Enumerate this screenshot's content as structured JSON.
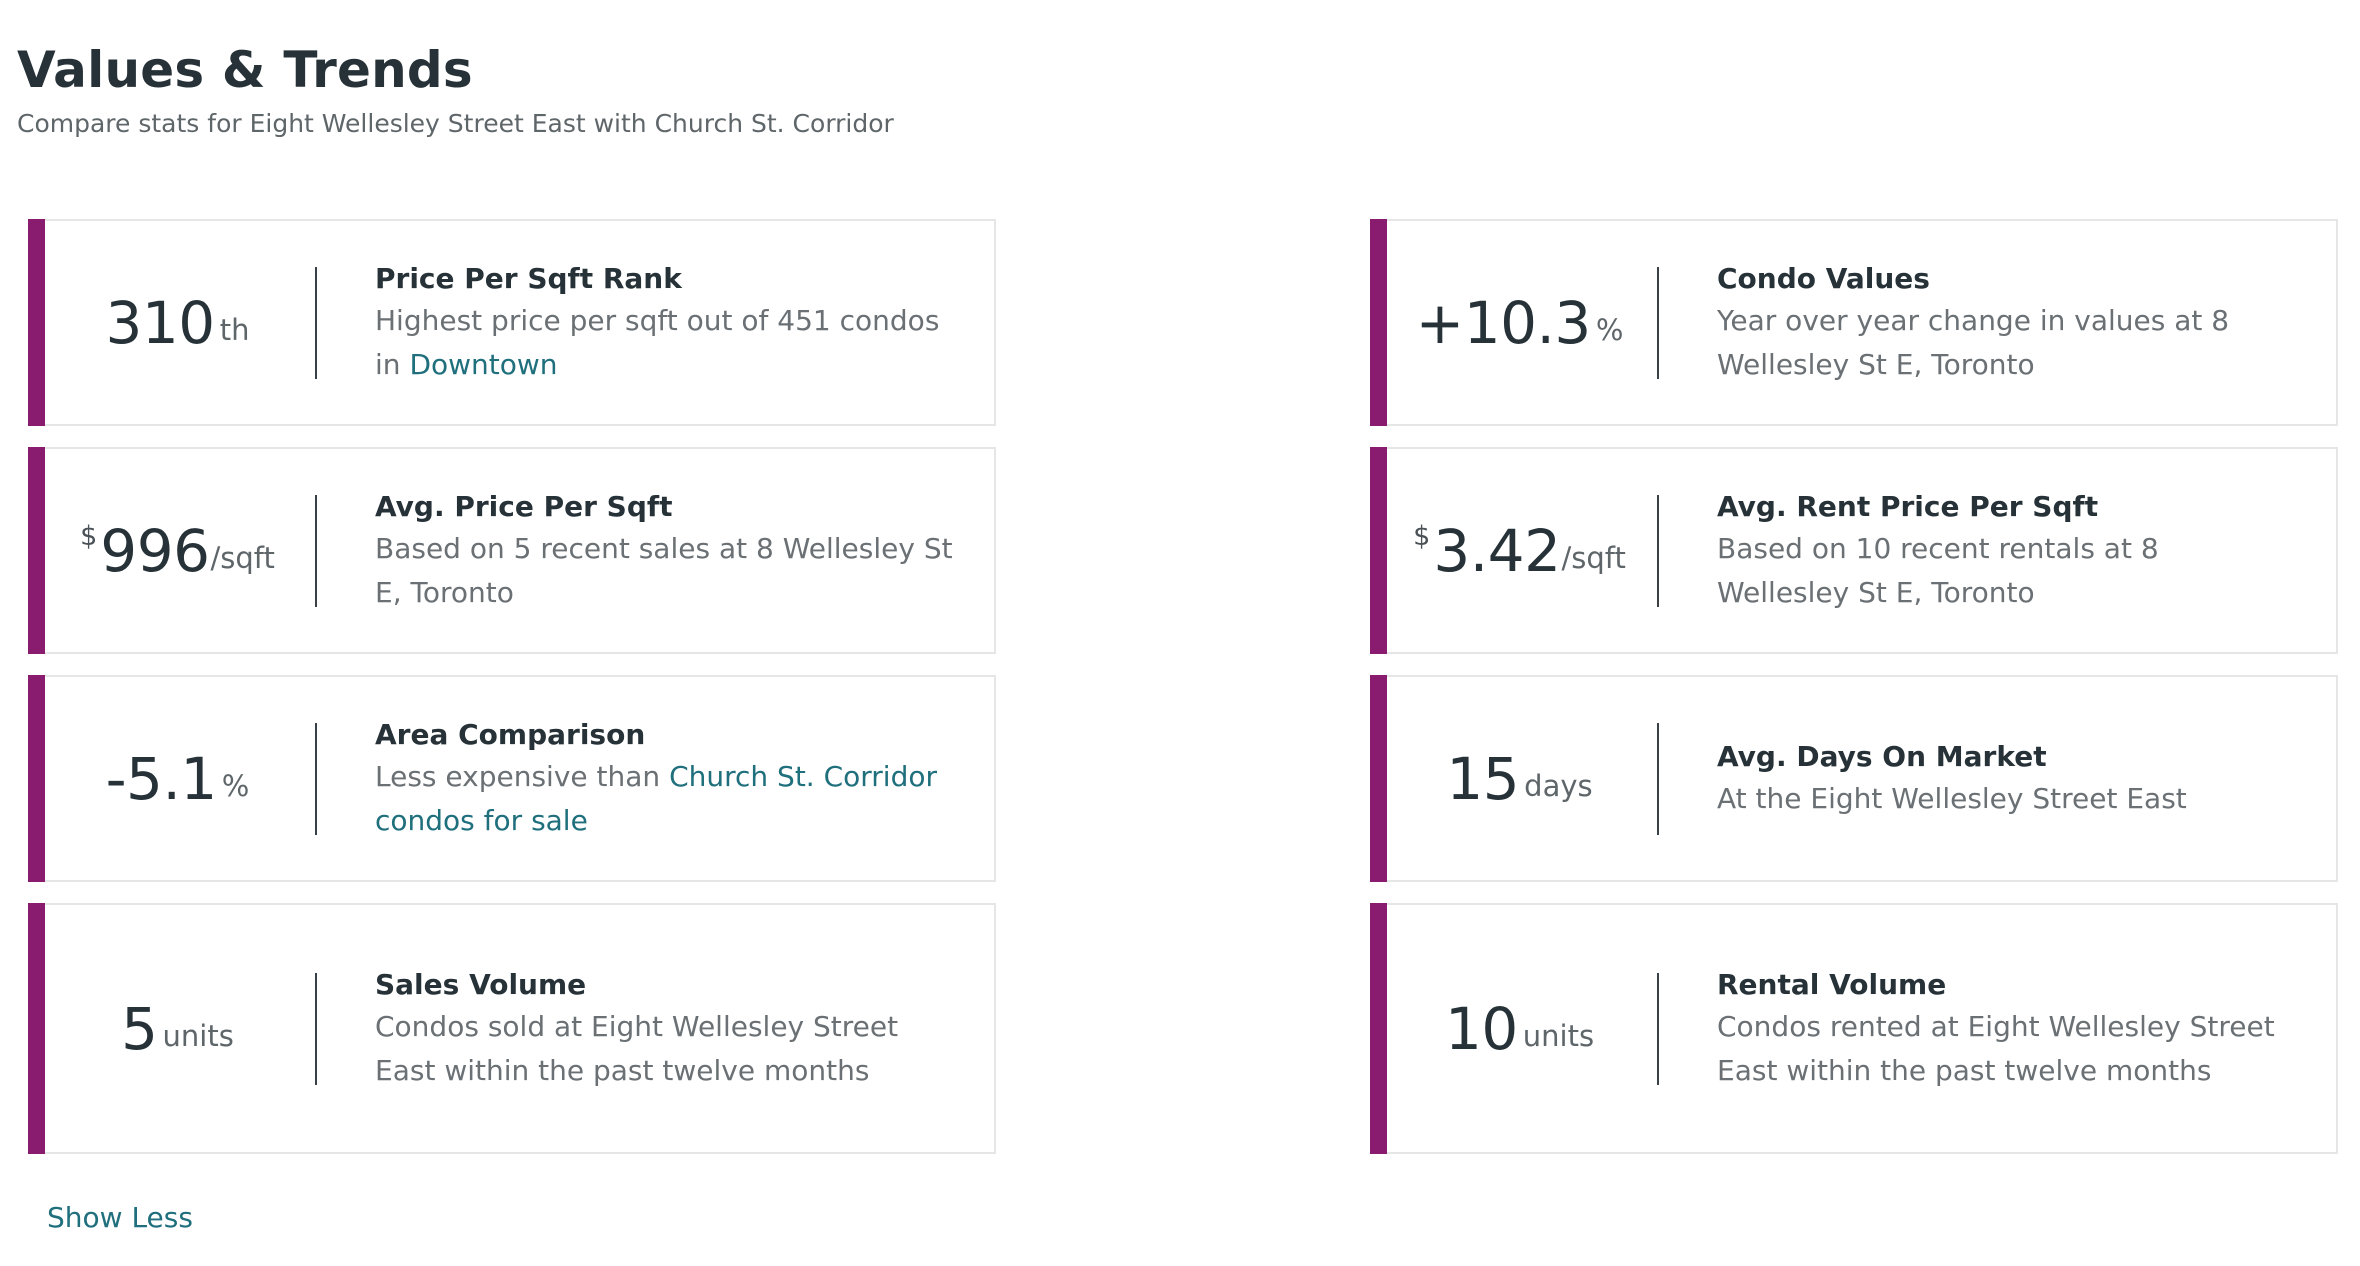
{
  "header": {
    "title": "Values & Trends",
    "subtitle": "Compare stats for Eight Wellesley Street East with Church St. Corridor"
  },
  "cards": {
    "price_rank": {
      "value": "310",
      "unit": "th",
      "title": "Price Per Sqft Rank",
      "desc_pre": "Highest price per sqft out of 451 condos in ",
      "link": "Downtown"
    },
    "condo_values": {
      "value": "+10.3",
      "unit": "%",
      "title": "Condo Values",
      "desc": "Year over year change in values at 8 Wellesley St E, Toronto"
    },
    "avg_price": {
      "currency": "$",
      "value": "996",
      "unit": "/sqft",
      "title": "Avg. Price Per Sqft",
      "desc": "Based on 5 recent sales at 8 Wellesley St E, Toronto"
    },
    "avg_rent": {
      "currency": "$",
      "value": "3.42",
      "unit": "/sqft",
      "title": "Avg. Rent Price Per Sqft",
      "desc": "Based on 10 recent rentals at 8 Wellesley St E, Toronto"
    },
    "area_comparison": {
      "value": "-5.1",
      "unit": "%",
      "title": "Area Comparison",
      "desc_pre": "Less expensive than ",
      "link": "Church St. Corridor condos for sale"
    },
    "days_on_market": {
      "value": "15",
      "unit": "days",
      "title": "Avg. Days On Market",
      "desc": "At the Eight Wellesley Street East"
    },
    "sales_volume": {
      "value": "5",
      "unit": "units",
      "title": "Sales Volume",
      "desc": "Condos sold at Eight Wellesley Street East within the past twelve months"
    },
    "rental_volume": {
      "value": "10",
      "unit": "units",
      "title": "Rental Volume",
      "desc": "Condos rented at Eight Wellesley Street East within the past twelve months"
    }
  },
  "footer": {
    "show_less_label": "Show Less"
  },
  "colors": {
    "accent": "#8a1c6f",
    "link": "#1f6f7d",
    "heading": "#263238",
    "body_text": "#6a7074",
    "border": "#e6e6e6"
  }
}
